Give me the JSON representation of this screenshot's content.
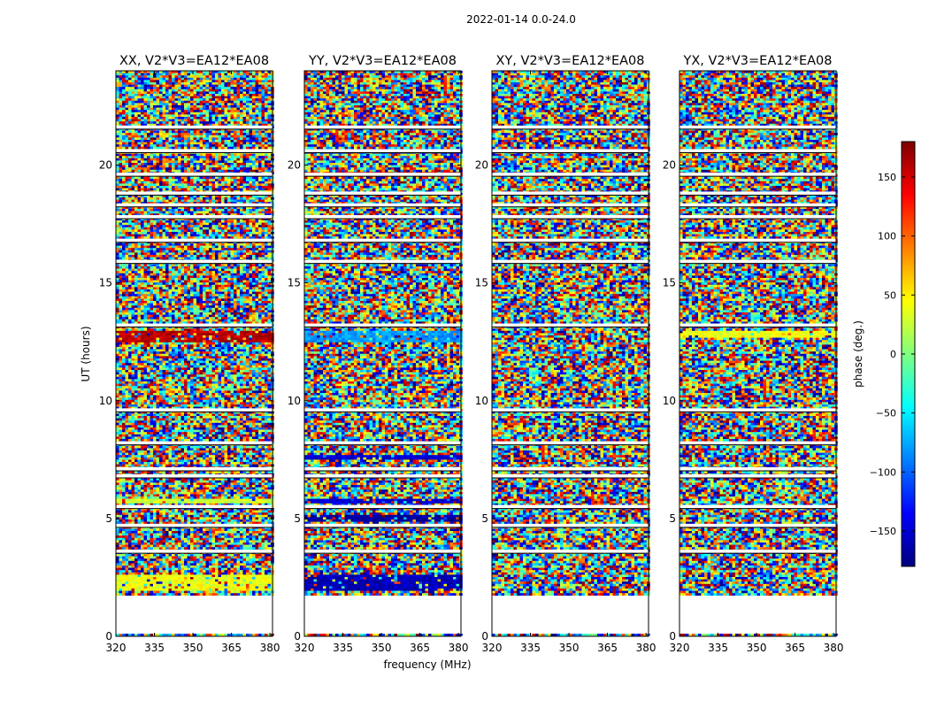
{
  "figure": {
    "suptitle": "2022-01-14 0.0-24.0",
    "xlabel": "frequency (MHz)",
    "ylabel": "UT (hours)"
  },
  "colorbar": {
    "label": "phase (deg.)",
    "range": [
      -180,
      180
    ],
    "ticks": [
      -150,
      -100,
      -50,
      0,
      50,
      100,
      150
    ],
    "colormap": "jet",
    "colors": [
      "#00007f",
      "#0000ff",
      "#007fff",
      "#00ffff",
      "#7fff7f",
      "#ffff00",
      "#ff7f00",
      "#ff0000",
      "#7f0000"
    ]
  },
  "chart_data": [
    {
      "type": "heatmap",
      "title": "XX, V2*V3=EA12*EA08",
      "xlim": [
        320,
        381
      ],
      "ylim": [
        0,
        24
      ],
      "xticks": [
        320,
        335,
        350,
        365,
        380
      ],
      "yticks": [
        0,
        5,
        10,
        15,
        20
      ],
      "z": "phase (deg.)",
      "data_coverage_hours": [
        1.8,
        24
      ],
      "blank_rows_hours": [
        3.6,
        4.7,
        5.5,
        6.8,
        7.1,
        8.2,
        9.6,
        13.2,
        15.9,
        16.8,
        17.8,
        18.3,
        18.8,
        19.6,
        20.6,
        21.6
      ],
      "coherent_bands": [
        {
          "from_hours": 1.9,
          "to_hours": 2.6,
          "phase_deg": 40
        },
        {
          "from_hours": 5.6,
          "to_hours": 5.85,
          "phase_deg": 30
        },
        {
          "from_hours": 12.5,
          "to_hours": 13.0,
          "phase_deg": 160
        },
        {
          "from_hours": 20.5,
          "to_hours": 20.7,
          "phase_deg": 30
        }
      ]
    },
    {
      "type": "heatmap",
      "title": "YY, V2*V3=EA12*EA08",
      "xlim": [
        320,
        381
      ],
      "ylim": [
        0,
        24
      ],
      "xticks": [
        320,
        335,
        350,
        365,
        380
      ],
      "yticks": [
        0,
        5,
        10,
        15,
        20
      ],
      "z": "phase (deg.)",
      "data_coverage_hours": [
        1.8,
        24
      ],
      "blank_rows_hours": [
        3.6,
        4.7,
        5.5,
        6.8,
        7.1,
        8.2,
        9.6,
        13.2,
        15.9,
        16.8,
        17.8,
        18.3,
        18.8,
        19.6,
        20.6,
        21.6
      ],
      "coherent_bands": [
        {
          "from_hours": 1.9,
          "to_hours": 2.6,
          "phase_deg": -160
        },
        {
          "from_hours": 4.9,
          "to_hours": 5.2,
          "phase_deg": -170
        },
        {
          "from_hours": 5.6,
          "to_hours": 5.85,
          "phase_deg": -150
        },
        {
          "from_hours": 7.5,
          "to_hours": 7.7,
          "phase_deg": -150
        },
        {
          "from_hours": 12.5,
          "to_hours": 13.0,
          "phase_deg": -80
        },
        {
          "from_hours": 19.5,
          "to_hours": 19.7,
          "phase_deg": 160
        },
        {
          "from_hours": 20.5,
          "to_hours": 20.7,
          "phase_deg": -150
        }
      ]
    },
    {
      "type": "heatmap",
      "title": "XY, V2*V3=EA12*EA08",
      "xlim": [
        320,
        381
      ],
      "ylim": [
        0,
        24
      ],
      "xticks": [
        320,
        335,
        350,
        365,
        380
      ],
      "yticks": [
        0,
        5,
        10,
        15,
        20
      ],
      "z": "phase (deg.)",
      "data_coverage_hours": [
        1.8,
        24
      ],
      "blank_rows_hours": [
        3.6,
        4.7,
        5.5,
        6.8,
        7.1,
        8.2,
        9.6,
        13.2,
        15.9,
        16.8,
        17.8,
        18.3,
        18.8,
        19.6,
        20.6,
        21.6
      ],
      "coherent_bands": []
    },
    {
      "type": "heatmap",
      "title": "YX, V2*V3=EA12*EA08",
      "xlim": [
        320,
        381
      ],
      "ylim": [
        0,
        24
      ],
      "xticks": [
        320,
        335,
        350,
        365,
        380
      ],
      "yticks": [
        0,
        5,
        10,
        15,
        20
      ],
      "z": "phase (deg.)",
      "data_coverage_hours": [
        1.8,
        24
      ],
      "blank_rows_hours": [
        3.6,
        4.7,
        5.5,
        6.8,
        7.1,
        8.2,
        9.6,
        13.2,
        15.9,
        16.8,
        17.8,
        18.3,
        18.8,
        19.6,
        20.6,
        21.6
      ],
      "coherent_bands": [
        {
          "from_hours": 12.7,
          "to_hours": 13.0,
          "phase_deg": 40
        }
      ]
    }
  ]
}
